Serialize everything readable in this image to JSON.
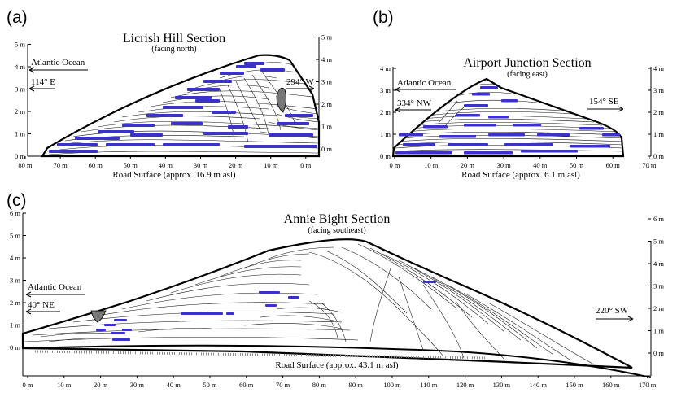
{
  "colors": {
    "clast_blue": "#3b33c8",
    "ink": "#000000",
    "boulder_gray": "#777777"
  },
  "panels": [
    {
      "letter": "(a)",
      "title": "Licrish Hill Section",
      "subtitle": "(facing north)",
      "road": "Road Surface (approx. 16.9 m asl)",
      "ocean": "Atlantic Ocean",
      "left_bearing": "114° E",
      "right_bearing": "294° W",
      "left_y_ticks": [
        "0 m",
        "1 m",
        "2 m",
        "3 m",
        "4 m",
        "5 m"
      ],
      "right_y_ticks": [
        "0 m",
        "1 m",
        "2 m",
        "3 m",
        "4 m",
        "5 m"
      ],
      "x_ticks": [
        "80 m",
        "70 m",
        "60 m",
        "50 m",
        "40 m",
        "30 m",
        "20 m",
        "10 m",
        "0 m"
      ]
    },
    {
      "letter": "(b)",
      "title": "Airport Junction Section",
      "subtitle": "(facing east)",
      "road": "Road Surface (approx. 6.1 m asl)",
      "ocean": "Atlantic Ocean",
      "left_bearing": "334° NW",
      "right_bearing": "154° SE",
      "left_y_ticks": [
        "0 m",
        "1 m",
        "2 m",
        "3 m",
        "4 m"
      ],
      "right_y_ticks": [
        "0 m",
        "1 m",
        "2 m",
        "3 m",
        "4 m"
      ],
      "x_ticks": [
        "0 m",
        "10 m",
        "20 m",
        "30 m",
        "40 m",
        "50 m",
        "60 m",
        "70 m"
      ]
    },
    {
      "letter": "(c)",
      "title": "Annie Bight Section",
      "subtitle": "(facing southeast)",
      "road": "Road Surface (approx. 43.1 m asl)",
      "ocean": "Atlantic Ocean",
      "left_bearing": "40° NE",
      "right_bearing": "220° SW",
      "left_y_ticks": [
        "0 m",
        "1 m",
        "2 m",
        "3 m",
        "4 m",
        "5 m",
        "6 m"
      ],
      "right_y_ticks": [
        "0 m",
        "1 m",
        "2 m",
        "3 m",
        "4 m",
        "5 m",
        "6 m"
      ],
      "x_ticks": [
        "0 m",
        "10 m",
        "20 m",
        "30 m",
        "40 m",
        "50 m",
        "60 m",
        "70 m",
        "80 m",
        "90 m",
        "100 m",
        "110 m",
        "120 m",
        "130 m",
        "140 m",
        "150 m",
        "160 m",
        "170 m"
      ]
    }
  ]
}
